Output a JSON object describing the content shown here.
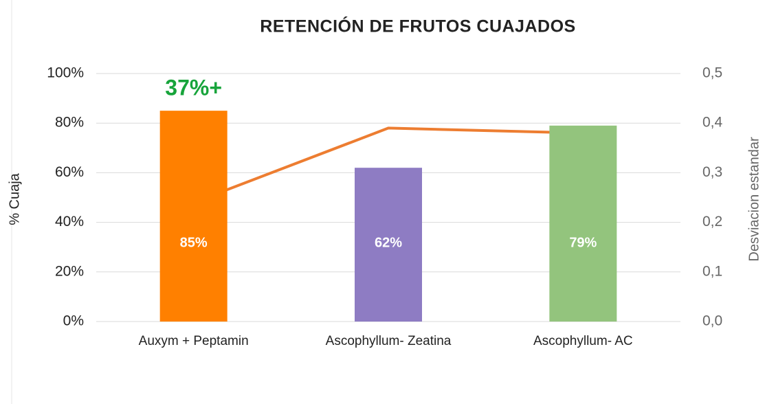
{
  "chart_data": {
    "type": "bar",
    "title": "RETENCIÓN DE FRUTOS CUAJADOS",
    "annotation": "37%+",
    "ylabel": "% Cuaja",
    "y2label": "Desviacion estandar",
    "categories": [
      "Auxym + Peptamin",
      "Ascophyllum- Zeatina",
      "Ascophyllum- AC"
    ],
    "values": [
      85,
      62,
      79
    ],
    "value_labels": [
      "85%",
      "62%",
      "79%"
    ],
    "colors": [
      "#ff8000",
      "#8e7cc3",
      "#93c47d"
    ],
    "series": [
      {
        "type": "line",
        "axis": "y2",
        "color": "#ed7d31",
        "values": [
          0.24,
          0.39,
          0.38
        ]
      }
    ],
    "ylim": [
      0,
      100
    ],
    "yticks": [
      {
        "value": 0,
        "label": "0%"
      },
      {
        "value": 20,
        "label": "20%"
      },
      {
        "value": 40,
        "label": "40%"
      },
      {
        "value": 60,
        "label": "60%"
      },
      {
        "value": 80,
        "label": "80%"
      },
      {
        "value": 100,
        "label": "100%"
      }
    ],
    "y2lim": [
      0,
      0.5
    ],
    "y2ticks": [
      {
        "value": 0,
        "label": "0,0"
      },
      {
        "value": 0.1,
        "label": "0,1"
      },
      {
        "value": 0.2,
        "label": "0,2"
      },
      {
        "value": 0.3,
        "label": "0,3"
      },
      {
        "value": 0.4,
        "label": "0,4"
      },
      {
        "value": 0.5,
        "label": "0,5"
      }
    ],
    "grid": true
  }
}
